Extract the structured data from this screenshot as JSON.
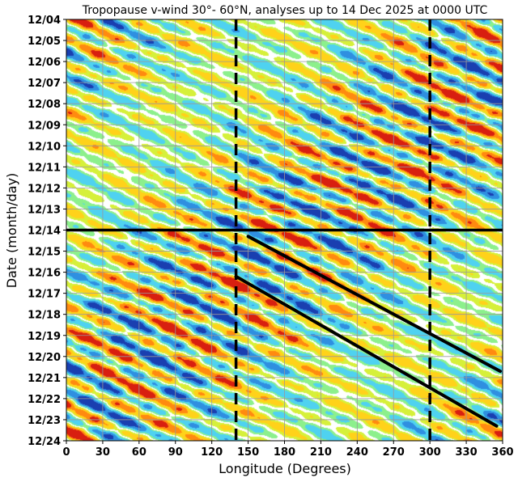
{
  "chart_data": {
    "type": "heatmap",
    "title": "Tropopause v-wind 30°- 60°N, analyses up to 14 Dec 2025 at 0000 UTC",
    "xlabel": "Longitude (Degrees)",
    "ylabel": "Date (month/day)",
    "xlim": [
      0,
      360
    ],
    "x_ticks": [
      0,
      30,
      60,
      90,
      120,
      150,
      180,
      210,
      240,
      270,
      300,
      330,
      360
    ],
    "y_tick_labels": [
      "12/04",
      "12/05",
      "12/06",
      "12/07",
      "12/08",
      "12/09",
      "12/10",
      "12/11",
      "12/12",
      "12/13",
      "12/14",
      "12/15",
      "12/16",
      "12/17",
      "12/18",
      "12/19",
      "12/20",
      "12/21",
      "12/22",
      "12/23",
      "12/24"
    ],
    "grid": true,
    "colormap": [
      "#1a3fb0",
      "#2f8fe0",
      "#4fd2f0",
      "#8cf08c",
      "#d6f03a",
      "#ffd21a",
      "#ff8a10",
      "#d81f10"
    ],
    "zero_band_color": "#ffffff",
    "analysis_line_date": "12/14",
    "dashed_longitudes": [
      140,
      300
    ],
    "trend_lines": [
      {
        "start": {
          "lon": 150,
          "date": "12/14.3"
        },
        "end": {
          "lon": 358,
          "date": "12/20.7"
        }
      },
      {
        "start": {
          "lon": 140,
          "date": "12/16.2"
        },
        "end": {
          "lon": 355,
          "date": "12/23.3"
        }
      }
    ]
  }
}
